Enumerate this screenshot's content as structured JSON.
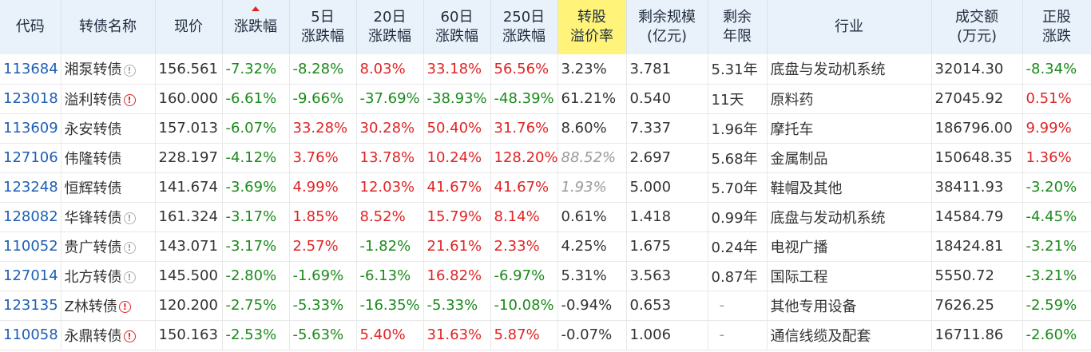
{
  "headers": [
    {
      "key": "code",
      "lines": [
        "代码"
      ]
    },
    {
      "key": "name",
      "lines": [
        "转债名称"
      ]
    },
    {
      "key": "price",
      "lines": [
        "现价"
      ]
    },
    {
      "key": "chg",
      "lines": [
        "涨跌幅"
      ],
      "sorted": true
    },
    {
      "key": "d5",
      "lines": [
        "5日",
        "涨跌幅"
      ]
    },
    {
      "key": "d20",
      "lines": [
        "20日",
        "涨跌幅"
      ]
    },
    {
      "key": "d60",
      "lines": [
        "60日",
        "涨跌幅"
      ]
    },
    {
      "key": "d250",
      "lines": [
        "250日",
        "涨跌幅"
      ]
    },
    {
      "key": "prem",
      "lines": [
        "转股",
        "溢价率"
      ],
      "highlight": true
    },
    {
      "key": "scale",
      "lines": [
        "剩余规模",
        "(亿元)"
      ]
    },
    {
      "key": "term",
      "lines": [
        "剩余",
        "年限"
      ]
    },
    {
      "key": "industry",
      "lines": [
        "行业"
      ]
    },
    {
      "key": "volume",
      "lines": [
        "成交额",
        "(万元)"
      ]
    },
    {
      "key": "stock",
      "lines": [
        "正股",
        "涨跌"
      ]
    }
  ],
  "rows": [
    {
      "code": "113684",
      "name": "湘泵转债",
      "icon": "info",
      "price": "156.561",
      "chg": "-7.32%",
      "d5": "-8.28%",
      "d20": "8.03%",
      "d60": "33.18%",
      "d250": "56.56%",
      "prem": "3.23%",
      "scale": "3.781",
      "term": "5.31年",
      "industry": "底盘与发动机系统",
      "volume": "32014.30",
      "stock": "-8.34%"
    },
    {
      "code": "123018",
      "name": "溢利转债",
      "icon": "warn",
      "price": "160.000",
      "chg": "-6.61%",
      "d5": "-9.66%",
      "d20": "-37.69%",
      "d60": "-38.93%",
      "d250": "-48.39%",
      "prem": "61.21%",
      "scale": "0.540",
      "term": "11天",
      "industry": "原料药",
      "volume": "27045.92",
      "stock": "0.51%"
    },
    {
      "code": "113609",
      "name": "永安转债",
      "icon": "",
      "price": "157.013",
      "chg": "-6.07%",
      "d5": "33.28%",
      "d20": "30.28%",
      "d60": "50.40%",
      "d250": "31.76%",
      "prem": "8.60%",
      "scale": "7.337",
      "term": "1.96年",
      "industry": "摩托车",
      "volume": "186796.00",
      "stock": "9.99%"
    },
    {
      "code": "127106",
      "name": "伟隆转债",
      "icon": "",
      "price": "228.197",
      "chg": "-4.12%",
      "d5": "3.76%",
      "d20": "13.78%",
      "d60": "10.24%",
      "d250": "128.20%",
      "prem": "88.52%",
      "premGrey": true,
      "scale": "2.697",
      "term": "5.68年",
      "industry": "金属制品",
      "volume": "150648.35",
      "stock": "1.36%"
    },
    {
      "code": "123248",
      "name": "恒辉转债",
      "icon": "",
      "price": "141.674",
      "chg": "-3.69%",
      "d5": "4.99%",
      "d20": "12.03%",
      "d60": "41.67%",
      "d250": "41.67%",
      "prem": "1.93%",
      "premGrey": true,
      "scale": "5.000",
      "term": "5.70年",
      "industry": "鞋帽及其他",
      "volume": "38411.93",
      "stock": "-3.20%"
    },
    {
      "code": "128082",
      "name": "华锋转债",
      "icon": "info",
      "price": "161.324",
      "chg": "-3.17%",
      "d5": "1.85%",
      "d20": "8.52%",
      "d60": "15.79%",
      "d250": "8.14%",
      "prem": "0.61%",
      "scale": "1.418",
      "term": "0.99年",
      "industry": "底盘与发动机系统",
      "volume": "14584.79",
      "stock": "-4.45%"
    },
    {
      "code": "110052",
      "name": "贵广转债",
      "icon": "info",
      "price": "143.071",
      "chg": "-3.17%",
      "d5": "2.57%",
      "d20": "-1.82%",
      "d60": "21.61%",
      "d250": "2.33%",
      "prem": "4.25%",
      "scale": "1.675",
      "term": "0.24年",
      "industry": "电视广播",
      "volume": "18424.81",
      "stock": "-3.21%"
    },
    {
      "code": "127014",
      "name": "北方转债",
      "icon": "info",
      "price": "145.500",
      "chg": "-2.80%",
      "d5": "-1.69%",
      "d20": "-6.13%",
      "d60": "16.82%",
      "d250": "-6.97%",
      "prem": "5.31%",
      "scale": "3.563",
      "term": "0.87年",
      "industry": "国际工程",
      "volume": "5550.72",
      "stock": "-3.21%"
    },
    {
      "code": "123135",
      "name": "Z林转债",
      "icon": "warn",
      "price": "120.200",
      "chg": "-2.75%",
      "d5": "-5.33%",
      "d20": "-16.35%",
      "d60": "-5.33%",
      "d250": "-10.08%",
      "prem": "-0.94%",
      "scale": "0.653",
      "term": "-",
      "industry": "其他专用设备",
      "volume": "7626.25",
      "stock": "-2.59%"
    },
    {
      "code": "110058",
      "name": "永鼎转债",
      "icon": "warn",
      "price": "150.163",
      "chg": "-2.53%",
      "d5": "-5.63%",
      "d20": "5.40%",
      "d60": "31.63%",
      "d250": "5.87%",
      "prem": "-0.07%",
      "scale": "1.006",
      "term": "-",
      "industry": "通信线缆及配套",
      "volume": "16711.86",
      "stock": "-2.60%"
    }
  ],
  "colors": {
    "up": "#e02424",
    "down": "#1a8a1a",
    "code": "#1e5fb4",
    "header_bg": "#e9f1fb",
    "highlight": "#fff37a"
  }
}
